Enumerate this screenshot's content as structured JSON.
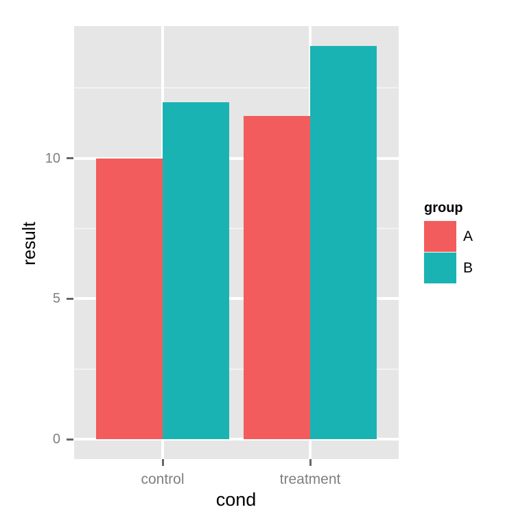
{
  "figure": {
    "background": "#FFFFFF",
    "panel_background": "#E6E6E6",
    "grid_major_color": "#FFFFFF",
    "grid_minor_color": "#F2F2F2",
    "tick_color": "#666666",
    "axis_text_color": "#7F7F7F",
    "title_color": "#000000"
  },
  "chart_data": {
    "type": "bar",
    "title": "",
    "xlabel": "cond",
    "ylabel": "result",
    "categories": [
      "control",
      "treatment"
    ],
    "x_tick_labels": [
      "control",
      "treatment"
    ],
    "series": [
      {
        "name": "A",
        "color": "#F25C5C",
        "values": [
          10.0,
          11.5
        ]
      },
      {
        "name": "B",
        "color": "#1AB3B3",
        "values": [
          12.0,
          14.0
        ]
      }
    ],
    "ylim": [
      -0.7,
      14.7
    ],
    "y_major_ticks": [
      0,
      5,
      10
    ],
    "y_minor_ticks": [
      2.5,
      7.5,
      12.5
    ],
    "y_tick_labels": [
      "0",
      "5",
      "10"
    ],
    "grid": true,
    "legend": {
      "title": "group",
      "position": "right",
      "entries": [
        {
          "label": "A"
        },
        {
          "label": "B"
        }
      ]
    }
  }
}
